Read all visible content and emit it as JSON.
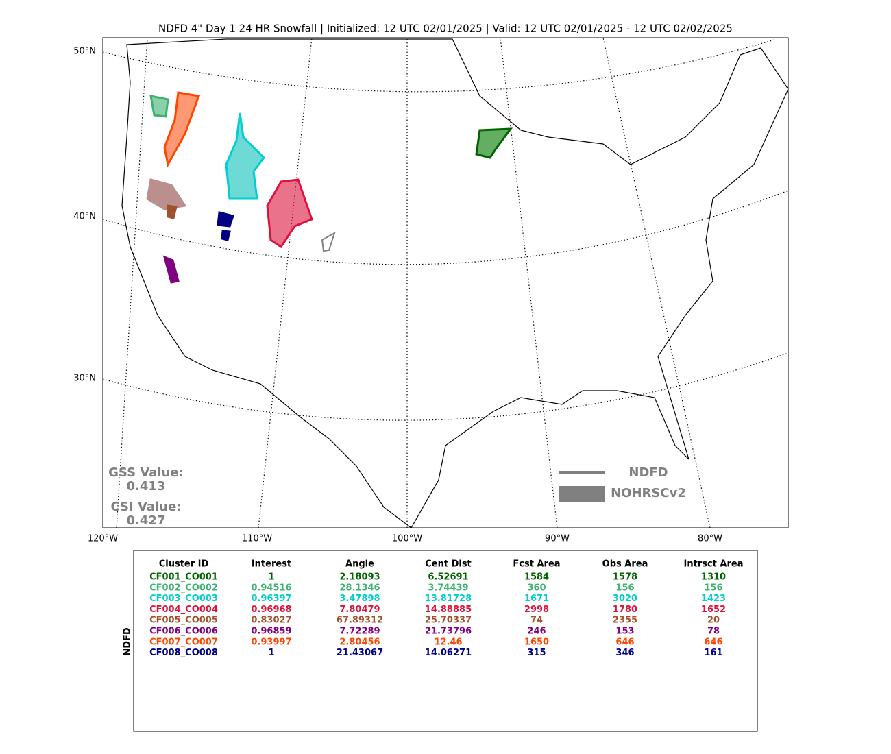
{
  "title": "NDFD 4\" Day 1 24 HR Snowfall | Initialized: 12 UTC 02/01/2025 | Valid: 12 UTC 02/01/2025 - 12 UTC 02/02/2025",
  "map": {
    "lat_labels": [
      "50°N",
      "40°N",
      "30°N"
    ],
    "lon_labels": [
      "120°W",
      "110°W",
      "100°W",
      "90°W",
      "80°W"
    ]
  },
  "scores": {
    "gss_label": "GSS Value:",
    "gss_value": "0.413",
    "csi_label": "CSI Value:",
    "csi_value": "0.427"
  },
  "legend": {
    "line_label": "NDFD",
    "fill_label": "NOHRSCv2"
  },
  "table": {
    "side_label": "NDFD",
    "headers": [
      "Cluster ID",
      "Interest",
      "Angle",
      "Cent Dist",
      "Fcst Area",
      "Obs Area",
      "Intrsct Area"
    ],
    "rows": [
      {
        "color": "#006400",
        "cells": [
          "CF001_CO001",
          "1",
          "2.18093",
          "6.52691",
          "1584",
          "1578",
          "1310"
        ]
      },
      {
        "color": "#3cb371",
        "cells": [
          "CF002_CO002",
          "0.94516",
          "28.1346",
          "3.74439",
          "360",
          "156",
          "156"
        ]
      },
      {
        "color": "#00ced1",
        "cells": [
          "CF003_CO003",
          "0.96397",
          "3.47898",
          "13.81728",
          "1671",
          "3020",
          "1423"
        ]
      },
      {
        "color": "#dc143c",
        "cells": [
          "CF004_CO004",
          "0.96968",
          "7.80479",
          "14.88885",
          "2998",
          "1780",
          "1652"
        ]
      },
      {
        "color": "#a0522d",
        "cells": [
          "CF005_CO005",
          "0.83027",
          "67.89312",
          "25.70337",
          "74",
          "2355",
          "20"
        ]
      },
      {
        "color": "#800080",
        "cells": [
          "CF006_CO006",
          "0.96859",
          "7.72289",
          "21.73796",
          "246",
          "153",
          "78"
        ]
      },
      {
        "color": "#ff4500",
        "cells": [
          "CF007_CO007",
          "0.93997",
          "2.80456",
          "12.46",
          "1650",
          "646",
          "646"
        ]
      },
      {
        "color": "#000080",
        "cells": [
          "CF008_CO008",
          "1",
          "21.43067",
          "14.06271",
          "315",
          "346",
          "161"
        ]
      }
    ]
  }
}
